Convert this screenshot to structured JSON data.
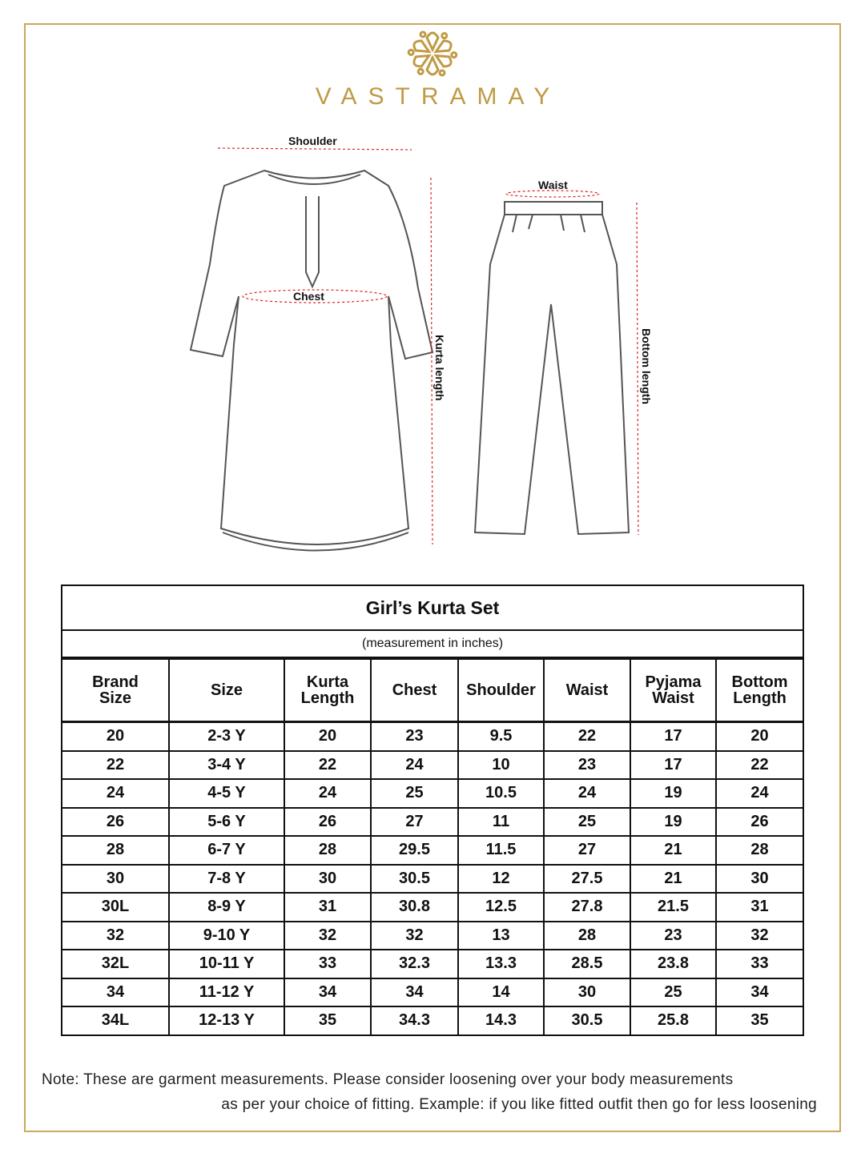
{
  "brand": {
    "name": "VASTRAMAY",
    "logo": "gold-mandala-logo",
    "color": "#c09a45"
  },
  "diagram": {
    "kurta_labels": {
      "shoulder": "Shoulder",
      "chest": "Chest",
      "length": "Kurta length"
    },
    "pyjama_labels": {
      "waist": "Waist",
      "length": "Bottom length"
    },
    "measure_line_color": "#e02020"
  },
  "table": {
    "title": "Girl’s Kurta Set",
    "subtitle": "(measurement in inches)",
    "headers": [
      [
        "Brand",
        "Size"
      ],
      [
        "Size"
      ],
      [
        "Kurta",
        "Length"
      ],
      [
        "Chest"
      ],
      [
        "Shoulder"
      ],
      [
        "Waist"
      ],
      [
        "Pyjama",
        "Waist"
      ],
      [
        "Bottom",
        "Length"
      ]
    ],
    "rows": [
      [
        "20",
        "2-3 Y",
        "20",
        "23",
        "9.5",
        "22",
        "17",
        "20"
      ],
      [
        "22",
        "3-4 Y",
        "22",
        "24",
        "10",
        "23",
        "17",
        "22"
      ],
      [
        "24",
        "4-5 Y",
        "24",
        "25",
        "10.5",
        "24",
        "19",
        "24"
      ],
      [
        "26",
        "5-6 Y",
        "26",
        "27",
        "11",
        "25",
        "19",
        "26"
      ],
      [
        "28",
        "6-7 Y",
        "28",
        "29.5",
        "11.5",
        "27",
        "21",
        "28"
      ],
      [
        "30",
        "7-8 Y",
        "30",
        "30.5",
        "12",
        "27.5",
        "21",
        "30"
      ],
      [
        "30L",
        "8-9 Y",
        "31",
        "30.8",
        "12.5",
        "27.8",
        "21.5",
        "31"
      ],
      [
        "32",
        "9-10 Y",
        "32",
        "32",
        "13",
        "28",
        "23",
        "32"
      ],
      [
        "32L",
        "10-11 Y",
        "33",
        "32.3",
        "13.3",
        "28.5",
        "23.8",
        "33"
      ],
      [
        "34",
        "11-12 Y",
        "34",
        "34",
        "14",
        "30",
        "25",
        "34"
      ],
      [
        "34L",
        "12-13 Y",
        "35",
        "34.3",
        "14.3",
        "30.5",
        "25.8",
        "35"
      ]
    ]
  },
  "note": {
    "line1": "Note: These are garment measurements. Please consider loosening over your body measurements",
    "line2": "as per your choice of fitting. Example: if you like fitted outfit then go for less loosening"
  }
}
